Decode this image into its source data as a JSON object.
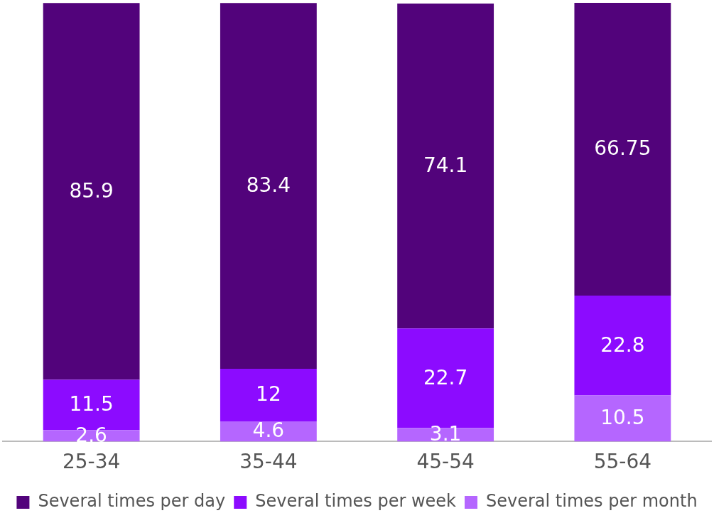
{
  "chart_data": {
    "type": "bar",
    "stacked": true,
    "categories": [
      "25-34",
      "35-44",
      "45-54",
      "55-64"
    ],
    "series": [
      {
        "name": "Several times per month",
        "color": "#b566ff",
        "values": [
          2.6,
          4.6,
          3.1,
          10.5
        ]
      },
      {
        "name": "Several times per week",
        "color": "#8c0bff",
        "values": [
          11.5,
          12,
          22.7,
          22.8
        ]
      },
      {
        "name": "Several times per day",
        "color": "#52037b",
        "values": [
          85.9,
          83.4,
          74.1,
          66.75
        ]
      }
    ],
    "tick_labels": "x",
    "data_labels": true,
    "legend": "bottom",
    "grid": false
  }
}
